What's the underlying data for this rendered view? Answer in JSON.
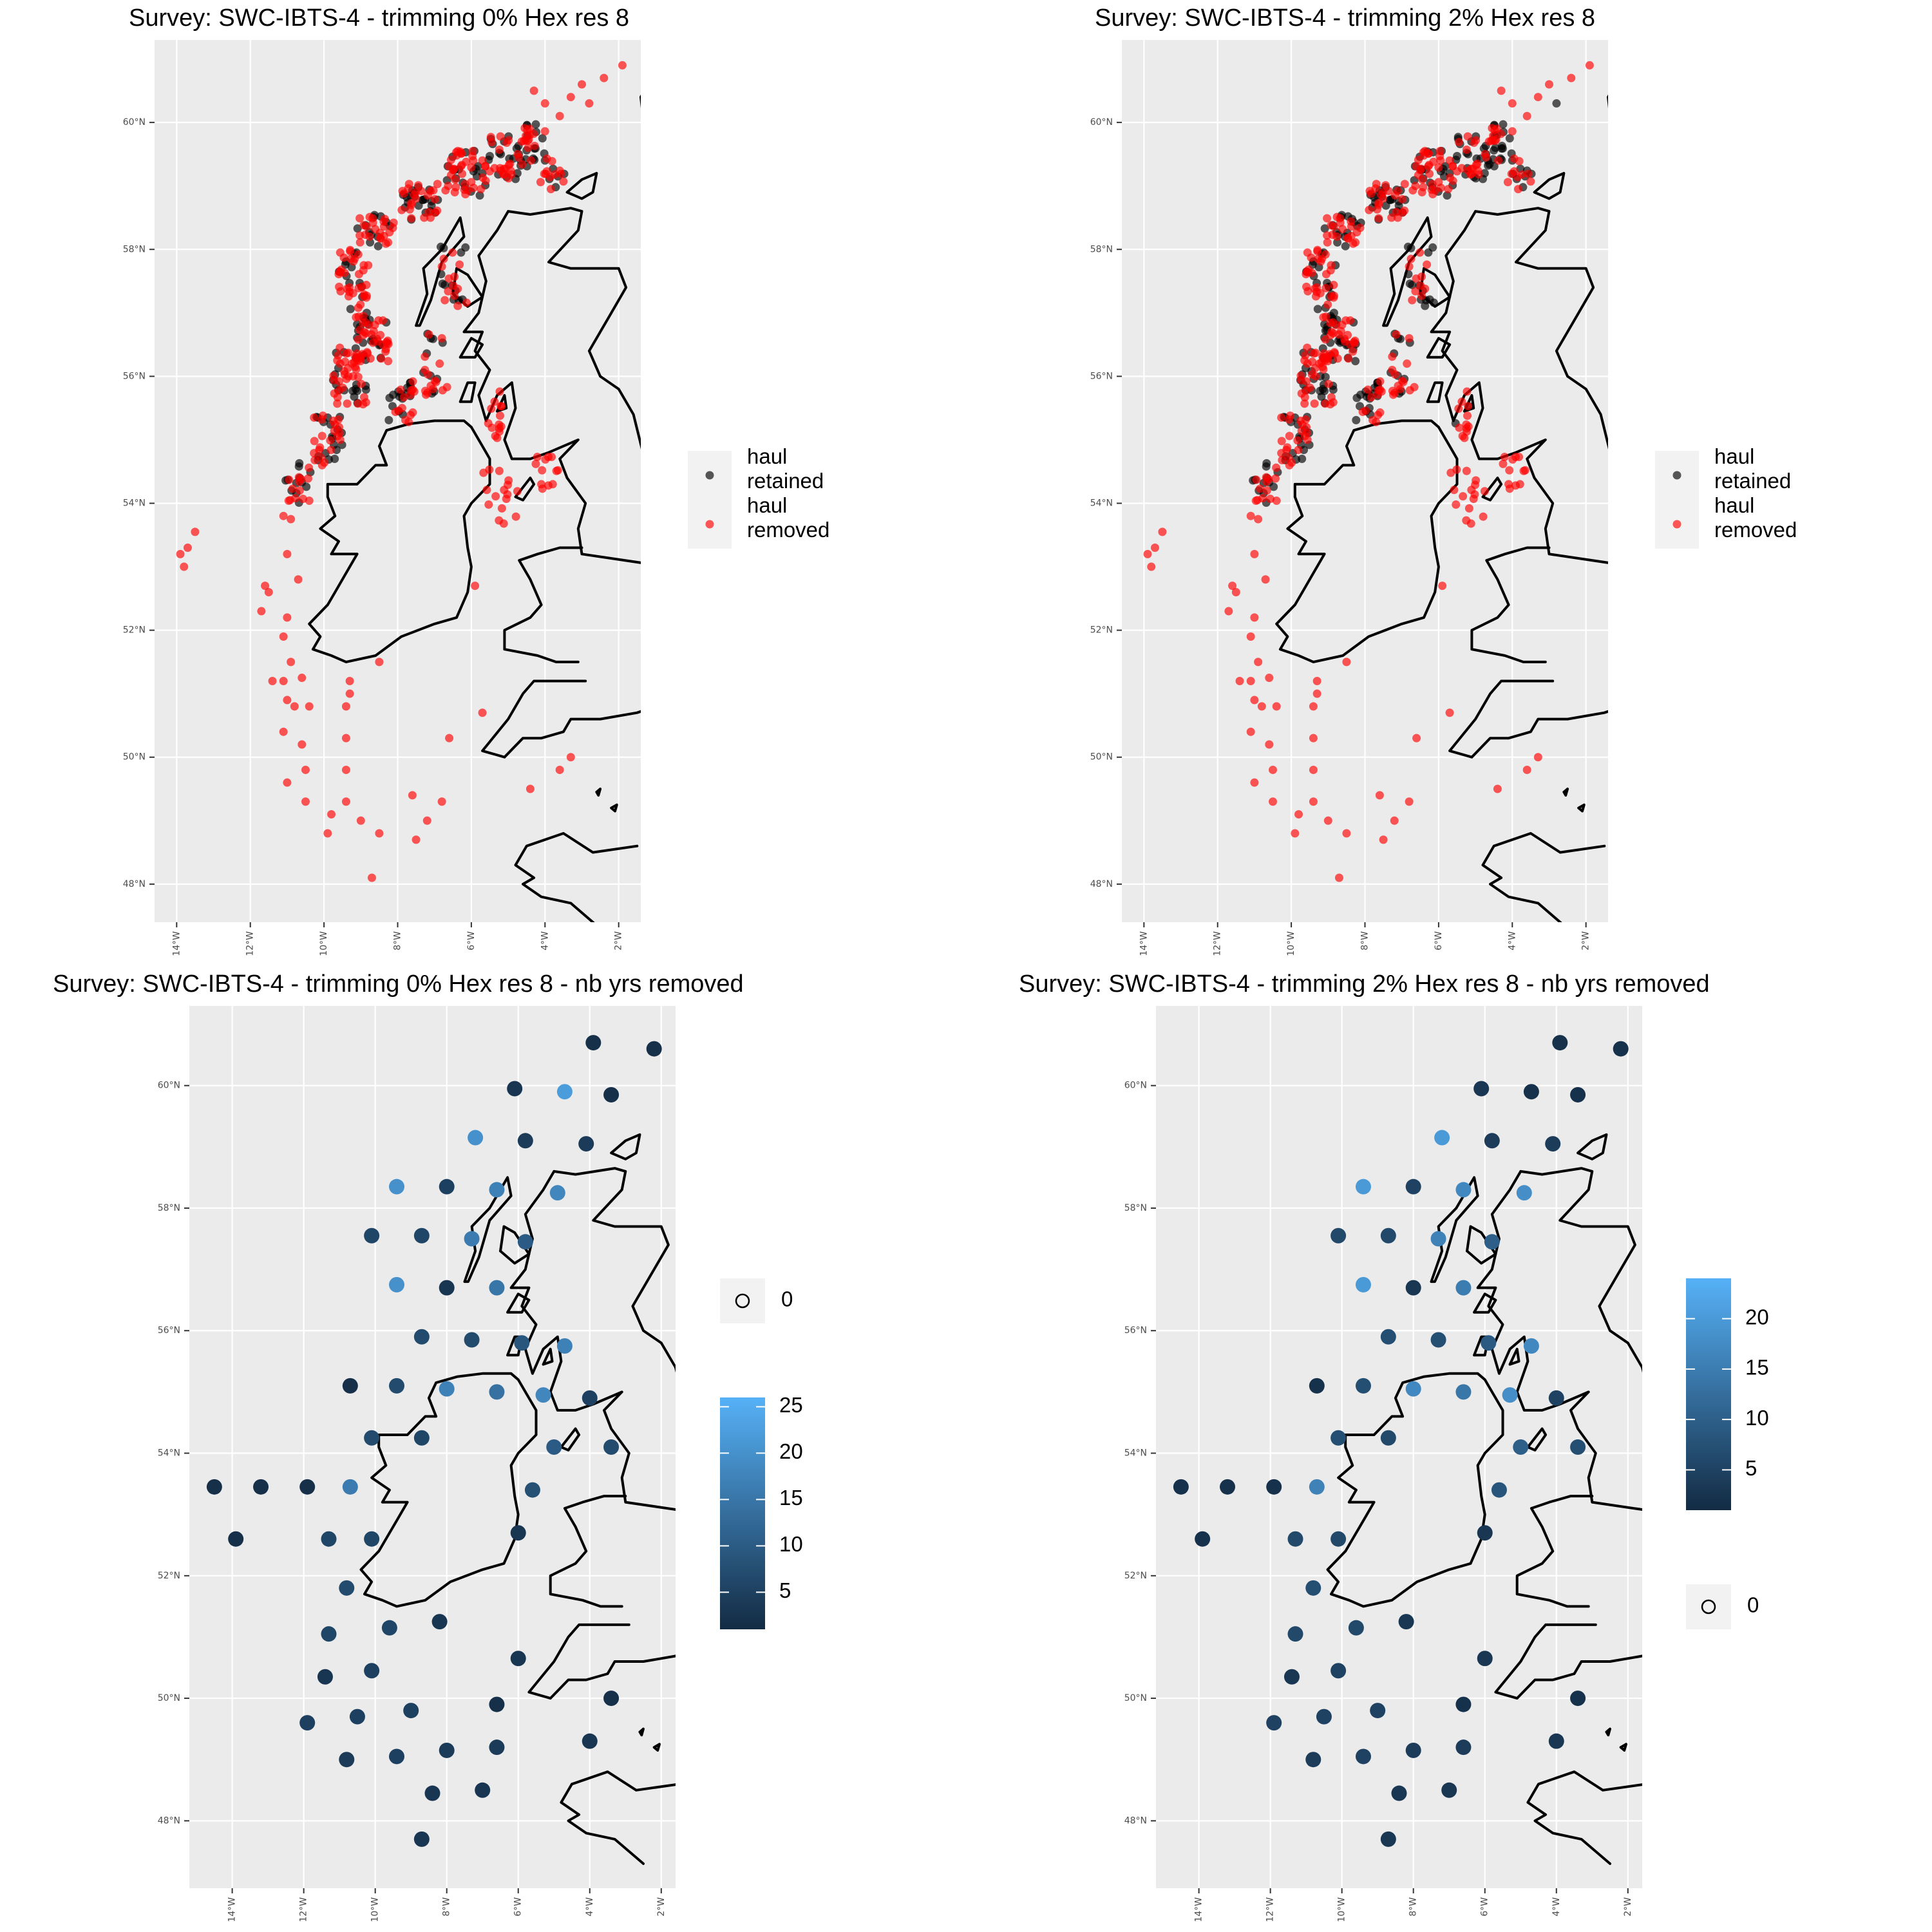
{
  "chart_data": [
    {
      "type": "scatter",
      "title": "Survey: SWC-IBTS-4 - trimming 0% Hex res 8",
      "xlabel": "",
      "ylabel": "",
      "xlim": [
        -14.6,
        -1.4
      ],
      "ylim": [
        47.4,
        61.3
      ],
      "x_ticks": [
        "14°W",
        "12°W",
        "10°W",
        "8°W",
        "6°W",
        "4°W",
        "2°W"
      ],
      "y_ticks": [
        "48°N",
        "50°N",
        "52°N",
        "54°N",
        "56°N",
        "58°N",
        "60°N"
      ],
      "grid": true,
      "legend": {
        "position": "right",
        "entries": [
          "haul retained",
          "haul removed"
        ]
      },
      "series": [
        {
          "name": "haul retained",
          "color": "#000000",
          "points": []
        },
        {
          "name": "haul removed",
          "color": "#ff0000",
          "points": []
        }
      ],
      "colors": {
        "retained": "#000000",
        "removed": "#ff0000",
        "panel_bg": "#ebebeb"
      }
    },
    {
      "type": "scatter",
      "title": "Survey: SWC-IBTS-4 - trimming 2% Hex res 8",
      "xlabel": "",
      "ylabel": "",
      "xlim": [
        -14.6,
        -1.4
      ],
      "ylim": [
        47.4,
        61.3
      ],
      "x_ticks": [
        "14°W",
        "12°W",
        "10°W",
        "8°W",
        "6°W",
        "4°W",
        "2°W"
      ],
      "y_ticks": [
        "48°N",
        "50°N",
        "52°N",
        "54°N",
        "56°N",
        "58°N",
        "60°N"
      ],
      "grid": true,
      "legend": {
        "position": "right",
        "entries": [
          "haul retained",
          "haul removed"
        ]
      },
      "series": [
        {
          "name": "haul retained",
          "color": "#000000",
          "points": []
        },
        {
          "name": "haul removed",
          "color": "#ff0000",
          "points": []
        }
      ],
      "colors": {
        "retained": "#000000",
        "removed": "#ff0000",
        "panel_bg": "#ebebeb"
      }
    },
    {
      "type": "scatter",
      "title": "Survey: SWC-IBTS-4 - trimming 0% Hex res 8 - nb yrs removed",
      "xlabel": "",
      "ylabel": "",
      "xlim": [
        -15.2,
        -1.6
      ],
      "ylim": [
        46.9,
        61.3
      ],
      "x_ticks": [
        "14°W",
        "12°W",
        "10°W",
        "8°W",
        "6°W",
        "4°W",
        "2°W"
      ],
      "y_ticks": [
        "48°N",
        "50°N",
        "52°N",
        "54°N",
        "56°N",
        "58°N",
        "60°N"
      ],
      "grid": true,
      "legend": {
        "position": "right",
        "shape_label": "0",
        "colorbar_ticks": [
          5,
          10,
          15,
          20,
          25
        ],
        "colorbar_range": [
          1,
          26
        ]
      },
      "color_scale": {
        "low": "#132b43",
        "high": "#56b1f7"
      },
      "points": []
    },
    {
      "type": "scatter",
      "title": "Survey: SWC-IBTS-4 - trimming 2% Hex res 8 - nb yrs removed",
      "xlabel": "",
      "ylabel": "",
      "xlim": [
        -15.2,
        -1.6
      ],
      "ylim": [
        46.9,
        61.3
      ],
      "x_ticks": [
        "14°W",
        "12°W",
        "10°W",
        "8°W",
        "6°W",
        "4°W",
        "2°W"
      ],
      "y_ticks": [
        "48°N",
        "50°N",
        "52°N",
        "54°N",
        "56°N",
        "58°N",
        "60°N"
      ],
      "grid": true,
      "legend": {
        "position": "right",
        "shape_label": "0",
        "colorbar_ticks": [
          5,
          10,
          15,
          20
        ],
        "colorbar_range": [
          1,
          24
        ]
      },
      "color_scale": {
        "low": "#132b43",
        "high": "#56b1f7"
      },
      "points": []
    }
  ]
}
